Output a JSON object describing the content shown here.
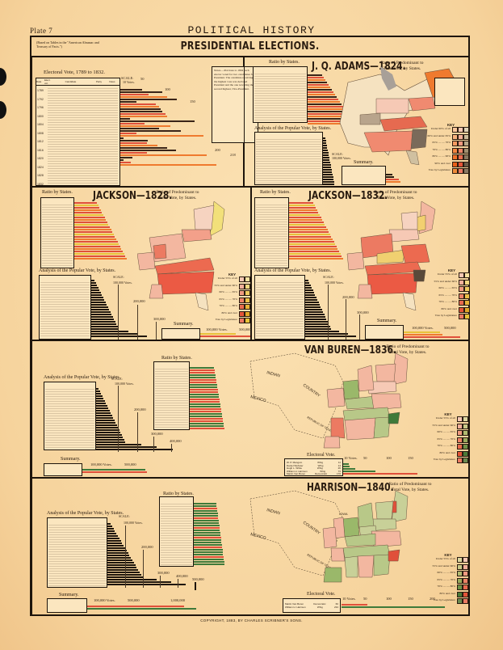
{
  "header": {
    "plate": "Plate 7",
    "running_title": "POLITICAL HISTORY",
    "source_note": "(Based on Tables in the \"American Almanac and Treasury of Facts.\")",
    "main_title": "PRESIDENTIAL ELECTIONS."
  },
  "panels": {
    "electoral_1789_1832": {
      "title": "Electoral Vote, 1789 to 1832.",
      "scale_label": "SCALE:",
      "scale_unit": "10 Votes.",
      "scale_ticks": [
        "20",
        "30",
        "40",
        "50",
        "100",
        "150",
        "200",
        "218"
      ],
      "table_headers": [
        "Date",
        "Elect. vot.",
        "Candidate",
        "Party",
        "Votes"
      ],
      "years": [
        "1789",
        "1792",
        "1796",
        "1800",
        "1804",
        "1808",
        "1812",
        "1816",
        "1820",
        "1824",
        "1828",
        "1832"
      ],
      "note": "Notes.—Previous to 1804 each elector voted for two candidates for President. The candidate receiving the highest vote was declared President and the one receiving the second highest, Vice-President."
    },
    "adams_1824": {
      "title": "J. Q. ADAMS—1824.",
      "ratio_by_states": "Ratio by States.",
      "ratio_title": "Ratio of Predominant to Total Vote, by States.",
      "popular_vote_title": "Analysis of the Popular Vote, by States.",
      "scale_label": "SCALE:",
      "scale_unit": "100,000 Votes.",
      "summary_title": "Summary.",
      "summary_headers": [
        "Candidate",
        "Vote"
      ],
      "key_title": "KEY",
      "key_labels": [
        "Under 60% of all",
        "60% and under 65%",
        "65% — — 70%",
        "70% — — 80%",
        "80% — — 90%",
        "90% and over",
        "Vote by Legislature"
      ]
    },
    "jackson_1828": {
      "title": "JACKSON—1828.",
      "ratio_by_states": "Ratio by States.",
      "ratio_title": "Ratio of Predominant to Total Vote, by States.",
      "popular_vote_title": "Analysis of the Popular Vote, by States.",
      "scale_label": "SCALE:",
      "scale_unit": "100,000 Votes.",
      "scale_ticks": [
        "200,000",
        "300,000"
      ],
      "summary_title": "Summary.",
      "summary_axis": [
        "100,000 Votes.",
        "500,000"
      ],
      "summary_rows": [
        "Jackson",
        "Adams, J. Q."
      ],
      "key_title": "KEY",
      "key_labels": [
        "Under 55% of all",
        "55% and under 60%",
        "60% — — 65%",
        "65% — — 70%",
        "70% — — 80%",
        "80% and over",
        "Vote by Legislature"
      ]
    },
    "jackson_1832": {
      "title": "JACKSON—1832.",
      "ratio_by_states": "Ratio by States.",
      "ratio_title": "Ratio of Predominant to Total Vote, by States.",
      "popular_vote_title": "Analysis of the Popular Vote, by States.",
      "scale_label": "SCALE:",
      "scale_unit": "100,000 Votes.",
      "scale_ticks": [
        "200,000",
        "300,000"
      ],
      "summary_title": "Summary.",
      "summary_axis": [
        "100,000 Votes.",
        "500,000"
      ],
      "summary_rows": [
        "Wirt and Floyd",
        "Clay",
        "Jackson"
      ],
      "key_title": "KEY",
      "key_labels": [
        "Under 55% of all",
        "55% and under 60%",
        "60% — — 65%",
        "65% — — 70%",
        "70% — — 80%",
        "80% and over",
        "Vote by Legislature"
      ]
    },
    "van_buren_1836": {
      "title": "VAN BUREN—1836.",
      "ratio_by_states": "Ratio by States.",
      "ratio_title": "Ratio of Predominant to Total Vote, by States.",
      "popular_vote_title": "Analysis of the Popular Vote, by States.",
      "scale_label": "SCALE:",
      "scale_unit": "100,000 Votes.",
      "scale_ticks": [
        "200,000",
        "300,000",
        "400,000"
      ],
      "summary_title": "Summary.",
      "summary_axis": [
        "100,000 Votes.",
        "500,000"
      ],
      "summary_rows": [
        "Whig Candidates",
        "Van Buren"
      ],
      "electoral_title": "Electoral Vote.",
      "electoral_headers": [
        "Candidate",
        "Party",
        "Votes"
      ],
      "electoral_rows": [
        {
          "candidate": "W. P. Mangum",
          "party": "Whig",
          "votes": "11"
        },
        {
          "candidate": "Daniel Webster",
          "party": "Whig",
          "votes": "14"
        },
        {
          "candidate": "Hugh L. White",
          "party": "Whig",
          "votes": "26"
        },
        {
          "candidate": "William H. Harrison",
          "party": "Whig",
          "votes": "73"
        },
        {
          "candidate": "Martin Van Buren",
          "party": "Democratic",
          "votes": "170"
        }
      ],
      "electoral_axis": [
        "10 Votes.",
        "50",
        "100",
        "150"
      ],
      "map_labels": [
        "INDIAN COUNTRY",
        "MEXICO",
        "REPUBLIC OF TEXAS",
        "WIS."
      ],
      "key_title": "KEY",
      "key_labels": [
        "Under 55% of all",
        "55% and under 60%",
        "60% — — 65%",
        "65% — — 70%",
        "70% — — 80%",
        "80% and over",
        "Vote by Legislature"
      ]
    },
    "harrison_1840": {
      "title": "HARRISON—1840.",
      "ratio_by_states": "Ratio by States.",
      "ratio_title": "Ratio of Predominant to Total Vote, by States.",
      "popular_vote_title": "Analysis of the Popular Vote, by States.",
      "scale_label": "SCALE:",
      "scale_unit": "100,000 Votes.",
      "scale_ticks": [
        "200,000",
        "300,000",
        "400,000",
        "500,000"
      ],
      "summary_title": "Summary.",
      "summary_axis": [
        "100,000 Votes.",
        "500,000",
        "1,000,000"
      ],
      "summary_rows": [
        "Birney",
        "Van Buren",
        "Harrison"
      ],
      "electoral_title": "Electoral Vote.",
      "electoral_headers": [
        "Candidate",
        "Party",
        "Votes"
      ],
      "electoral_rows": [
        {
          "candidate": "Martin Van Buren",
          "party": "Democratic",
          "votes": "60"
        },
        {
          "candidate": "William H. Harrison",
          "party": "Whig",
          "votes": "234"
        }
      ],
      "electoral_axis": [
        "10 Votes.",
        "50",
        "100",
        "150",
        "200"
      ],
      "map_labels": [
        "INDIAN COUNTRY",
        "MEXICO",
        "REPUBLIC OF TEXAS",
        "IOWA",
        "WIS."
      ],
      "key_title": "KEY",
      "key_labels": [
        "Under 55% of all",
        "55% and under 60%",
        "60% — — 65%",
        "65% — — 70%",
        "70% — — 80%",
        "80% and over",
        "Vote by Legislature"
      ]
    }
  },
  "colors": {
    "paper": "#f8d9a4",
    "ink": "#1e150c",
    "federalist_dark": "#3a2418",
    "red": "#e0503a",
    "orange": "#ef7a2e",
    "yellow": "#e8c23a",
    "green": "#3f7a3a",
    "pink": "#f3b7a0"
  },
  "footer": {
    "copyright": "COPYRIGHT, 1883, BY CHARLES SCRIBNER'S SONS."
  }
}
